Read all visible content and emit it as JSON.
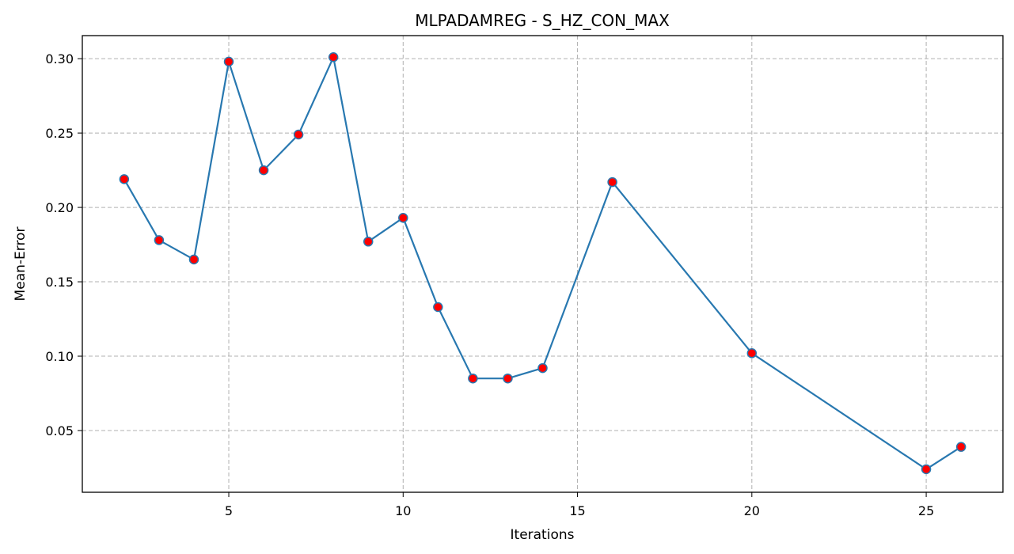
{
  "chart_data": {
    "type": "line",
    "title": "MLPADAMREG - S_HZ_CON_MAX",
    "xlabel": "Iterations",
    "ylabel": "Mean-Error",
    "xlim": [
      0.8,
      27.2
    ],
    "ylim": [
      0.0085,
      0.3155
    ],
    "xticks": [
      5,
      10,
      15,
      20,
      25
    ],
    "yticks": [
      0.05,
      0.1,
      0.15,
      0.2,
      0.25,
      0.3
    ],
    "ytick_labels": [
      "0.05",
      "0.10",
      "0.15",
      "0.20",
      "0.25",
      "0.30"
    ],
    "grid": true,
    "series": [
      {
        "x": [
          2,
          3,
          4,
          5,
          6,
          7,
          8,
          9,
          10,
          11,
          12,
          13,
          14,
          16,
          20,
          25,
          26
        ],
        "values": [
          0.219,
          0.178,
          0.165,
          0.298,
          0.225,
          0.249,
          0.301,
          0.177,
          0.193,
          0.133,
          0.085,
          0.085,
          0.092,
          0.217,
          0.102,
          0.024,
          0.039
        ],
        "line_color": "#2878b0",
        "marker_color": "#ff0000"
      }
    ]
  }
}
